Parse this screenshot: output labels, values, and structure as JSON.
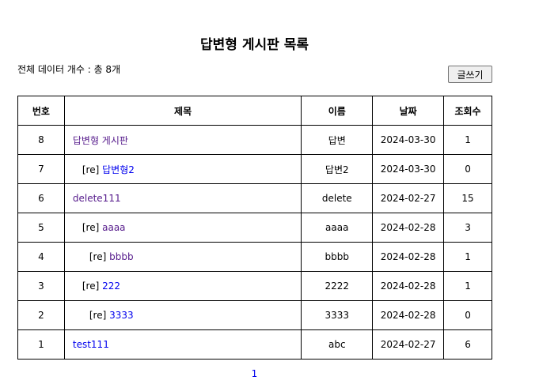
{
  "title": "답변형 게시판 목록",
  "count_text": "전체 데이터 개수 : 총 8개",
  "write_button": "글쓰기",
  "columns": [
    "번호",
    "제목",
    "이름",
    "날짜",
    "조회수"
  ],
  "rows": [
    {
      "num": "8",
      "depth": 0,
      "prefix": "",
      "subject": "답변형 게시판",
      "visited": true,
      "name": "답변",
      "date": "2024-03-30",
      "views": "1"
    },
    {
      "num": "7",
      "depth": 1,
      "prefix": "[re] ",
      "subject": "답변형2",
      "visited": false,
      "name": "답변2",
      "date": "2024-03-30",
      "views": "0"
    },
    {
      "num": "6",
      "depth": 0,
      "prefix": "",
      "subject": "delete111",
      "visited": true,
      "name": "delete",
      "date": "2024-02-27",
      "views": "15"
    },
    {
      "num": "5",
      "depth": 1,
      "prefix": "[re] ",
      "subject": "aaaa",
      "visited": true,
      "name": "aaaa",
      "date": "2024-02-28",
      "views": "3"
    },
    {
      "num": "4",
      "depth": 2,
      "prefix": "[re] ",
      "subject": "bbbb",
      "visited": true,
      "name": "bbbb",
      "date": "2024-02-28",
      "views": "1"
    },
    {
      "num": "3",
      "depth": 1,
      "prefix": "[re] ",
      "subject": "222",
      "visited": false,
      "name": "2222",
      "date": "2024-02-28",
      "views": "1"
    },
    {
      "num": "2",
      "depth": 2,
      "prefix": "[re] ",
      "subject": "3333",
      "visited": false,
      "name": "3333",
      "date": "2024-02-28",
      "views": "0"
    },
    {
      "num": "1",
      "depth": 0,
      "prefix": "",
      "subject": "test111",
      "visited": false,
      "name": "abc",
      "date": "2024-02-27",
      "views": "6"
    }
  ],
  "pagination": {
    "pages": [
      "1"
    ]
  },
  "colors": {
    "visited_link": "#551a8b",
    "link": "#0000ee",
    "border": "#000000"
  }
}
